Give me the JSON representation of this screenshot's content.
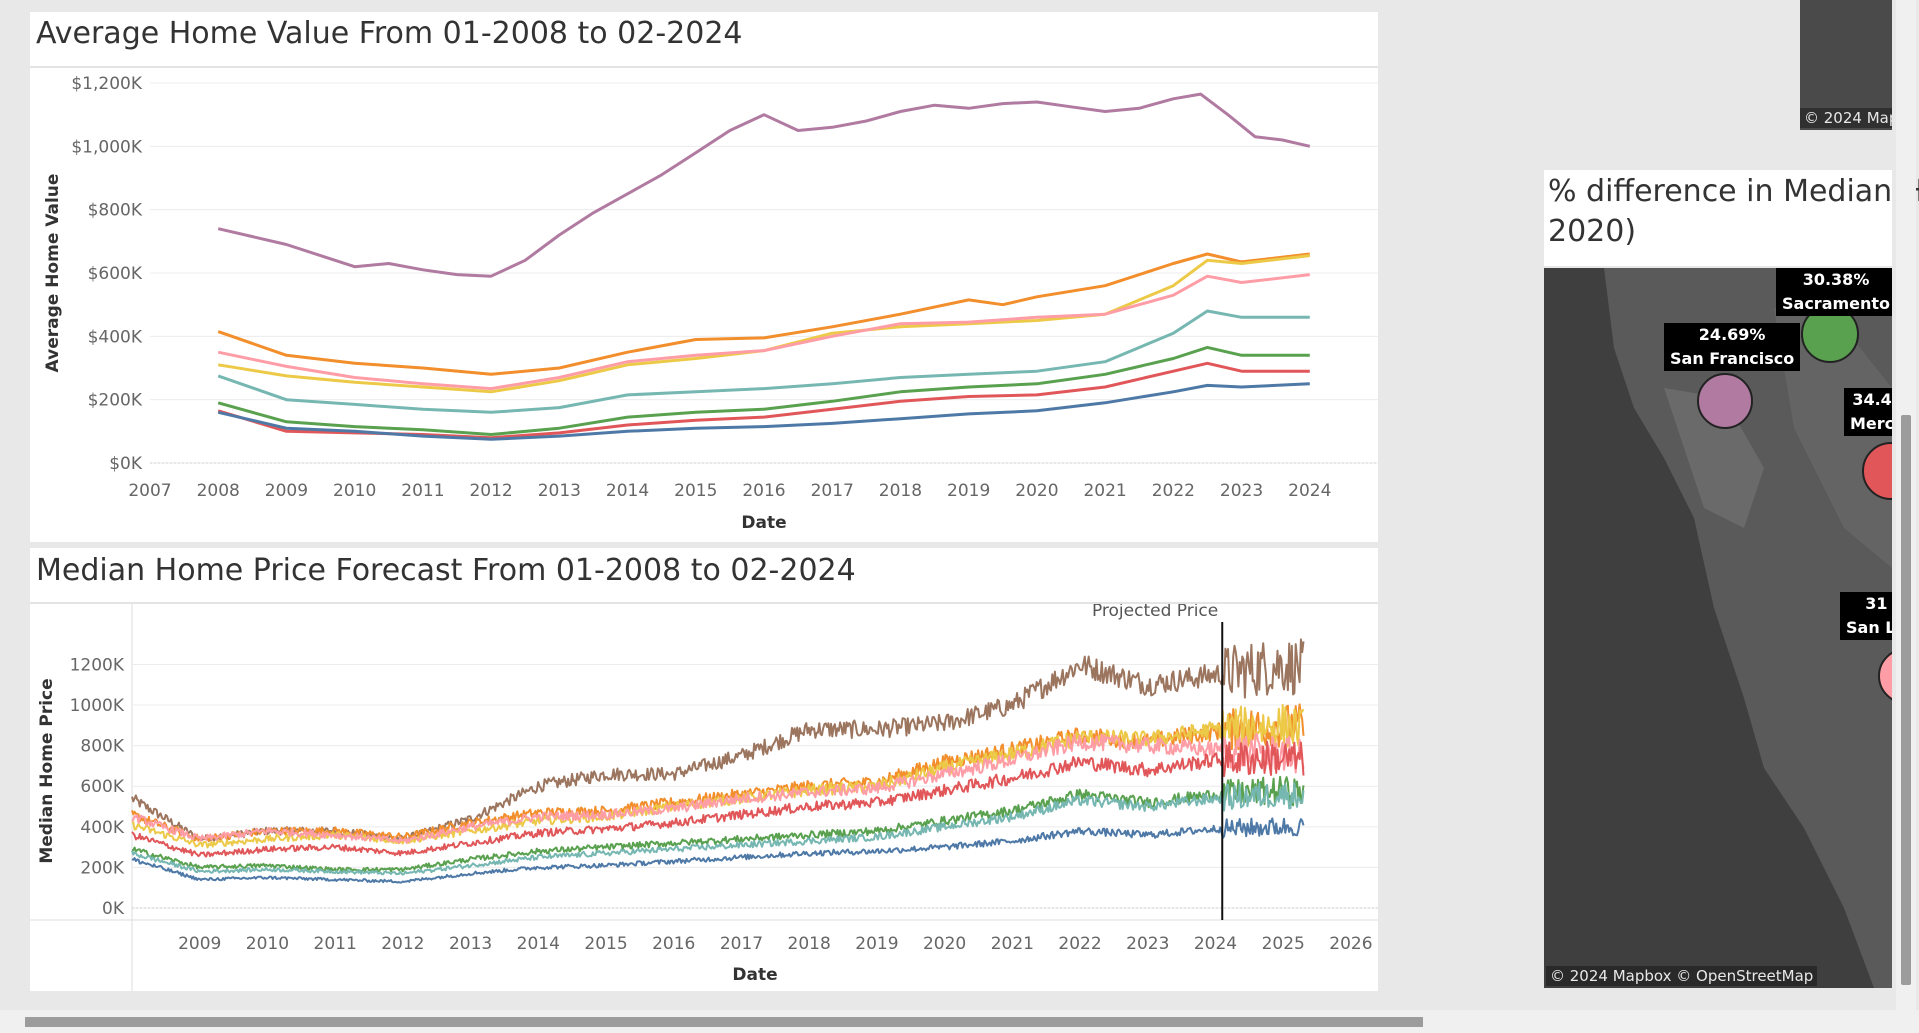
{
  "dashboard": {
    "top_chart_title": "Average Home Value From 01-2008 to 02-2024",
    "bottom_chart_title": "Median Home Price Forecast From 01-2008 to 02-2024",
    "map_title_line1": "% difference in Median H",
    "map_title_line2": "2020)",
    "map_attribution": "© 2024 Mapbox © OpenStreetMap",
    "top_map_attribution": "© 2024 Map"
  },
  "map": {
    "markers": [
      {
        "pct": "30.38%",
        "city": "Sacramento",
        "color": "#59a14f"
      },
      {
        "pct": "24.69%",
        "city": "San Francisco",
        "color": "#b07aa1"
      },
      {
        "pct": "34.4",
        "city": "Merc",
        "color": "#e15759"
      },
      {
        "pct": "31",
        "city": "San Lu",
        "color": "#ff9da7"
      }
    ]
  },
  "chart_data": [
    {
      "type": "line",
      "title": "Average Home Value From 01-2008 to 02-2024",
      "xlabel": "Date",
      "ylabel": "Average Home Value",
      "x_ticks": [
        "2007",
        "2008",
        "2009",
        "2010",
        "2011",
        "2012",
        "2013",
        "2014",
        "2015",
        "2016",
        "2017",
        "2018",
        "2019",
        "2020",
        "2021",
        "2022",
        "2023",
        "2024"
      ],
      "y_ticks": [
        "$0K",
        "$200K",
        "$400K",
        "$600K",
        "$800K",
        "$1,000K",
        "$1,200K"
      ],
      "xlim": [
        2007,
        2025
      ],
      "ylim": [
        0,
        1200
      ],
      "grid": true,
      "series": [
        {
          "color": "#b07aa1",
          "x": [
            2008,
            2009,
            2010,
            2010.5,
            2011,
            2011.5,
            2012,
            2012.5,
            2013,
            2013.5,
            2014,
            2014.5,
            2015,
            2015.5,
            2016,
            2016.5,
            2017,
            2017.5,
            2018,
            2018.5,
            2019,
            2019.5,
            2020,
            2020.5,
            2021,
            2021.5,
            2022,
            2022.4,
            2022.8,
            2023.2,
            2023.6,
            2024
          ],
          "y": [
            740,
            690,
            620,
            630,
            610,
            595,
            590,
            640,
            720,
            790,
            850,
            910,
            980,
            1050,
            1100,
            1050,
            1060,
            1080,
            1110,
            1130,
            1120,
            1135,
            1140,
            1125,
            1110,
            1120,
            1150,
            1165,
            1100,
            1030,
            1020,
            1000
          ]
        },
        {
          "color": "#f28e2b",
          "x": [
            2008,
            2009,
            2010,
            2011,
            2012,
            2013,
            2014,
            2015,
            2016,
            2017,
            2018,
            2019,
            2019.5,
            2020,
            2021,
            2022,
            2022.5,
            2023,
            2024
          ],
          "y": [
            415,
            340,
            315,
            300,
            280,
            300,
            350,
            390,
            395,
            430,
            470,
            515,
            500,
            525,
            560,
            630,
            660,
            635,
            660
          ]
        },
        {
          "color": "#edc948",
          "x": [
            2008,
            2009,
            2010,
            2011,
            2012,
            2013,
            2014,
            2015,
            2016,
            2017,
            2018,
            2019,
            2020,
            2021,
            2022,
            2022.5,
            2023,
            2024
          ],
          "y": [
            310,
            275,
            255,
            240,
            225,
            260,
            310,
            330,
            355,
            410,
            430,
            440,
            450,
            470,
            560,
            640,
            630,
            655
          ]
        },
        {
          "color": "#ff9da7",
          "x": [
            2008,
            2009,
            2010,
            2011,
            2012,
            2013,
            2014,
            2015,
            2016,
            2017,
            2018,
            2019,
            2020,
            2021,
            2022,
            2022.5,
            2023,
            2024
          ],
          "y": [
            350,
            305,
            270,
            250,
            235,
            270,
            320,
            340,
            355,
            400,
            440,
            445,
            460,
            470,
            530,
            590,
            570,
            595
          ]
        },
        {
          "color": "#76b7b2",
          "x": [
            2008,
            2009,
            2010,
            2011,
            2012,
            2013,
            2014,
            2015,
            2016,
            2017,
            2018,
            2019,
            2020,
            2021,
            2022,
            2022.5,
            2023,
            2024
          ],
          "y": [
            275,
            200,
            185,
            170,
            160,
            175,
            215,
            225,
            235,
            250,
            270,
            280,
            290,
            320,
            410,
            480,
            460,
            460
          ]
        },
        {
          "color": "#59a14f",
          "x": [
            2008,
            2009,
            2010,
            2011,
            2012,
            2013,
            2014,
            2015,
            2016,
            2017,
            2018,
            2019,
            2020,
            2021,
            2022,
            2022.5,
            2023,
            2024
          ],
          "y": [
            190,
            130,
            115,
            105,
            90,
            110,
            145,
            160,
            170,
            195,
            225,
            240,
            250,
            280,
            330,
            365,
            340,
            340
          ]
        },
        {
          "color": "#e15759",
          "x": [
            2008,
            2009,
            2010,
            2011,
            2012,
            2013,
            2014,
            2015,
            2016,
            2017,
            2018,
            2019,
            2020,
            2021,
            2022,
            2022.5,
            2023,
            2024
          ],
          "y": [
            165,
            100,
            95,
            90,
            80,
            95,
            120,
            135,
            145,
            170,
            195,
            210,
            215,
            240,
            290,
            315,
            290,
            290
          ]
        },
        {
          "color": "#4e79a7",
          "x": [
            2008,
            2009,
            2010,
            2011,
            2012,
            2013,
            2014,
            2015,
            2016,
            2017,
            2018,
            2019,
            2020,
            2021,
            2022,
            2022.5,
            2023,
            2024
          ],
          "y": [
            160,
            110,
            100,
            85,
            75,
            85,
            100,
            110,
            115,
            125,
            140,
            155,
            165,
            190,
            225,
            245,
            240,
            250
          ]
        }
      ]
    },
    {
      "type": "line",
      "title": "Median Home Price Forecast From 01-2008 to 02-2024",
      "xlabel": "Date",
      "ylabel": "Median Home Price",
      "x_ticks": [
        "2009",
        "2010",
        "2011",
        "2012",
        "2013",
        "2014",
        "2015",
        "2016",
        "2017",
        "2018",
        "2019",
        "2020",
        "2021",
        "2022",
        "2023",
        "2024",
        "2025",
        "2026"
      ],
      "y_ticks": [
        "0K",
        "200K",
        "400K",
        "600K",
        "800K",
        "1000K",
        "1200K"
      ],
      "xlim": [
        2008,
        2026.4
      ],
      "ylim": [
        0,
        1350
      ],
      "grid": true,
      "annotation": {
        "text": "Projected Price",
        "x": 2024.1
      },
      "series": [
        {
          "color": "#9c755f",
          "x": [
            2008,
            2009,
            2010,
            2011,
            2012,
            2013,
            2014,
            2015,
            2016,
            2017,
            2018,
            2019,
            2020,
            2021,
            2022,
            2023,
            2024,
            2025,
            2025.3
          ],
          "y": [
            540,
            340,
            380,
            380,
            340,
            440,
            600,
            660,
            660,
            750,
            880,
            880,
            910,
            1000,
            1200,
            1100,
            1150,
            1200,
            1180
          ]
        },
        {
          "color": "#f28e2b",
          "x": [
            2008,
            2009,
            2010,
            2011,
            2012,
            2013,
            2014,
            2015,
            2016,
            2017,
            2018,
            2019,
            2020,
            2021,
            2022,
            2023,
            2024,
            2025,
            2025.3
          ],
          "y": [
            460,
            340,
            380,
            380,
            350,
            420,
            470,
            480,
            520,
            560,
            600,
            620,
            720,
            780,
            850,
            820,
            870,
            900,
            900
          ]
        },
        {
          "color": "#edc948",
          "x": [
            2008,
            2009,
            2010,
            2011,
            2012,
            2013,
            2014,
            2015,
            2016,
            2017,
            2018,
            2019,
            2020,
            2021,
            2022,
            2023,
            2024,
            2025,
            2025.3
          ],
          "y": [
            410,
            310,
            340,
            360,
            330,
            380,
            430,
            450,
            500,
            540,
            580,
            600,
            690,
            760,
            840,
            830,
            880,
            900,
            880
          ]
        },
        {
          "color": "#ff9da7",
          "x": [
            2008,
            2009,
            2010,
            2011,
            2012,
            2013,
            2014,
            2015,
            2016,
            2017,
            2018,
            2019,
            2020,
            2021,
            2022,
            2023,
            2024,
            2025,
            2025.3
          ],
          "y": [
            450,
            340,
            380,
            360,
            330,
            400,
            450,
            460,
            490,
            540,
            570,
            590,
            660,
            730,
            820,
            800,
            780,
            760,
            740
          ]
        },
        {
          "color": "#e15759",
          "x": [
            2008,
            2009,
            2010,
            2011,
            2012,
            2013,
            2014,
            2015,
            2016,
            2017,
            2018,
            2019,
            2020,
            2021,
            2022,
            2023,
            2024,
            2025,
            2025.3
          ],
          "y": [
            360,
            260,
            290,
            300,
            270,
            320,
            370,
            390,
            420,
            460,
            500,
            520,
            580,
            640,
            720,
            680,
            730,
            740,
            730
          ]
        },
        {
          "color": "#59a14f",
          "x": [
            2008,
            2009,
            2010,
            2011,
            2012,
            2013,
            2014,
            2015,
            2016,
            2017,
            2018,
            2019,
            2020,
            2021,
            2022,
            2023,
            2024,
            2025,
            2025.3
          ],
          "y": [
            290,
            200,
            210,
            190,
            190,
            240,
            280,
            300,
            320,
            340,
            360,
            380,
            430,
            480,
            560,
            520,
            560,
            580,
            570
          ]
        },
        {
          "color": "#76b7b2",
          "x": [
            2008,
            2009,
            2010,
            2011,
            2012,
            2013,
            2014,
            2015,
            2016,
            2017,
            2018,
            2019,
            2020,
            2021,
            2022,
            2023,
            2024,
            2025,
            2025.3
          ],
          "y": [
            270,
            180,
            190,
            180,
            170,
            210,
            250,
            270,
            290,
            310,
            330,
            350,
            400,
            450,
            530,
            500,
            540,
            560,
            550
          ]
        },
        {
          "color": "#4e79a7",
          "x": [
            2008,
            2009,
            2010,
            2011,
            2012,
            2013,
            2014,
            2015,
            2016,
            2017,
            2018,
            2019,
            2020,
            2021,
            2022,
            2023,
            2024,
            2025,
            2025.3
          ],
          "y": [
            240,
            140,
            150,
            140,
            130,
            170,
            200,
            210,
            230,
            250,
            270,
            280,
            300,
            330,
            380,
            360,
            390,
            400,
            400
          ]
        }
      ]
    }
  ]
}
